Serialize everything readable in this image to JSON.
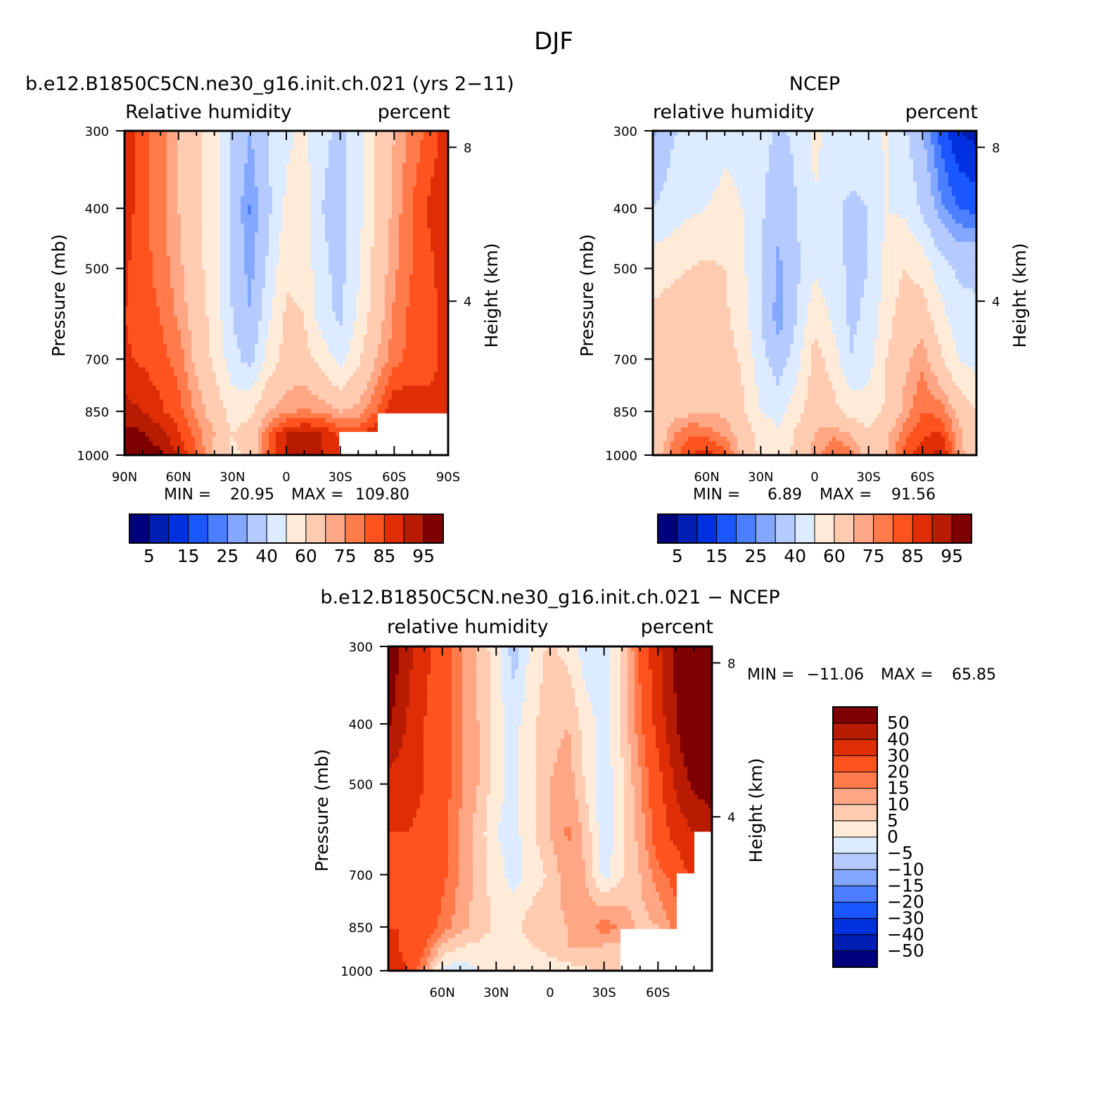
{
  "figure": {
    "title": "DJF"
  },
  "colors": {
    "abs_palette": [
      "#00007f",
      "#001fb2",
      "#0031e0",
      "#1b57ff",
      "#4b7fff",
      "#84a8ff",
      "#b5caff",
      "#dcebff",
      "#ffebd8",
      "#ffcbb1",
      "#ffa685",
      "#ff7b4b",
      "#ff531f",
      "#df2e06",
      "#b71c02",
      "#7f0000"
    ],
    "diff_palette": [
      "#00007f",
      "#001fb2",
      "#0031e0",
      "#1b57ff",
      "#4b7fff",
      "#84a8ff",
      "#b5caff",
      "#dcebff",
      "#ffebd8",
      "#ffcbb1",
      "#ffa685",
      "#ff7b4b",
      "#ff531f",
      "#df2e06",
      "#b71c02",
      "#7f0000"
    ],
    "missing": "#ffffff",
    "frame": "#000000"
  },
  "chart_data": [
    {
      "type": "heatmap",
      "id": "model",
      "title": "b.e12.B1850C5CN.ne30_g16.init.ch.021 (yrs 2−11)",
      "left_label": "Relative humidity",
      "right_label": "percent",
      "ylabel": "Pressure (mb)",
      "ylabel_right": "Height (km)",
      "x_ticklabels": [
        "90N",
        "60N",
        "30N",
        "0",
        "30S",
        "60S",
        "90S"
      ],
      "x_ticks": [
        90,
        60,
        30,
        0,
        -30,
        -60,
        -90
      ],
      "xlim": [
        90,
        -90
      ],
      "y_ticklabels": [
        "300",
        "400",
        "500",
        "700",
        "850",
        "1000"
      ],
      "y_ticks": [
        300,
        400,
        500,
        700,
        850,
        1000
      ],
      "ylim": [
        1000,
        300
      ],
      "y_scale": "log",
      "height_ticklabels": [
        "8",
        "4"
      ],
      "height_ticks": [
        8,
        4
      ],
      "min_label": "MIN =",
      "min_value": "20.95",
      "max_label": "MAX =",
      "max_value": "109.80",
      "levels": [
        5,
        10,
        15,
        20,
        25,
        30,
        40,
        50,
        60,
        70,
        75,
        80,
        85,
        90,
        95
      ],
      "colorbar_labels": [
        "5",
        "15",
        "25",
        "40",
        "60",
        "75",
        "85",
        "95"
      ],
      "lat": [
        90,
        80,
        70,
        60,
        50,
        40,
        30,
        20,
        10,
        0,
        -10,
        -20,
        -30,
        -40,
        -50,
        -60,
        -70,
        -80,
        -90
      ],
      "plev": [
        300,
        400,
        500,
        600,
        700,
        850,
        925,
        1000
      ],
      "values": [
        [
          88,
          82,
          77,
          70,
          62,
          54,
          38,
          30,
          40,
          48,
          52,
          42,
          38,
          45,
          60,
          70,
          77,
          82,
          88
        ],
        [
          88,
          82,
          77,
          70,
          62,
          54,
          36,
          24,
          38,
          52,
          55,
          40,
          36,
          46,
          62,
          72,
          80,
          86,
          90
        ],
        [
          86,
          82,
          78,
          72,
          64,
          54,
          38,
          27,
          42,
          58,
          57,
          42,
          37,
          48,
          64,
          74,
          80,
          84,
          88
        ],
        [
          85,
          83,
          80,
          74,
          66,
          56,
          40,
          30,
          48,
          62,
          60,
          44,
          38,
          52,
          66,
          76,
          82,
          84,
          86
        ],
        [
          86,
          84,
          82,
          78,
          68,
          58,
          44,
          36,
          54,
          64,
          64,
          56,
          46,
          58,
          70,
          78,
          82,
          84,
          86
        ],
        [
          92,
          90,
          86,
          82,
          74,
          66,
          56,
          58,
          70,
          74,
          76,
          74,
          70,
          72,
          80,
          90,
          88,
          86,
          86
        ],
        [
          97,
          96,
          92,
          86,
          78,
          70,
          60,
          64,
          80,
          90,
          92,
          90,
          84,
          84,
          90,
          null,
          null,
          null,
          null
        ],
        [
          99,
          98,
          96,
          90,
          80,
          68,
          58,
          62,
          82,
          90,
          92,
          90,
          86,
          null,
          null,
          null,
          null,
          null,
          null
        ]
      ]
    },
    {
      "type": "heatmap",
      "id": "obs",
      "title": "NCEP",
      "left_label": "relative humidity",
      "right_label": "percent",
      "ylabel": "Pressure (mb)",
      "ylabel_right": "Height (km)",
      "x_ticklabels": [
        "60N",
        "30N",
        "0",
        "30S",
        "60S"
      ],
      "x_ticks": [
        60,
        30,
        0,
        -30,
        -60
      ],
      "xlim": [
        90,
        -90
      ],
      "y_ticklabels": [
        "300",
        "400",
        "500",
        "700",
        "850",
        "1000"
      ],
      "y_ticks": [
        300,
        400,
        500,
        700,
        850,
        1000
      ],
      "ylim": [
        1000,
        300
      ],
      "y_scale": "log",
      "height_ticklabels": [
        "8",
        "4"
      ],
      "height_ticks": [
        8,
        4
      ],
      "min_label": "MIN =",
      "min_value": "6.89",
      "max_label": "MAX =",
      "max_value": "91.56",
      "levels": [
        5,
        10,
        15,
        20,
        25,
        30,
        40,
        50,
        60,
        70,
        75,
        80,
        85,
        90,
        95
      ],
      "colorbar_labels": [
        "5",
        "15",
        "25",
        "40",
        "60",
        "75",
        "85",
        "95"
      ],
      "lat": [
        90,
        80,
        70,
        60,
        50,
        40,
        30,
        20,
        10,
        0,
        -10,
        -20,
        -30,
        -40,
        -50,
        -60,
        -70,
        -80,
        -90
      ],
      "plev": [
        300,
        400,
        500,
        600,
        700,
        850,
        925,
        1000
      ],
      "values": [
        [
          28,
          38,
          44,
          46,
          48,
          48,
          44,
          38,
          42,
          52,
          48,
          46,
          44,
          52,
          42,
          30,
          18,
          10,
          8
        ],
        [
          40,
          44,
          48,
          50,
          52,
          50,
          42,
          32,
          40,
          50,
          42,
          38,
          40,
          50,
          48,
          38,
          26,
          20,
          18
        ],
        [
          56,
          58,
          60,
          62,
          60,
          52,
          40,
          28,
          38,
          48,
          44,
          38,
          40,
          54,
          60,
          56,
          44,
          38,
          38
        ],
        [
          62,
          64,
          66,
          66,
          62,
          54,
          40,
          26,
          40,
          58,
          48,
          38,
          42,
          56,
          66,
          66,
          54,
          44,
          42
        ],
        [
          64,
          66,
          68,
          70,
          66,
          58,
          44,
          34,
          46,
          64,
          56,
          40,
          46,
          60,
          68,
          74,
          62,
          50,
          46
        ],
        [
          62,
          66,
          68,
          70,
          68,
          62,
          50,
          46,
          56,
          66,
          64,
          56,
          54,
          62,
          72,
          80,
          78,
          68,
          60
        ],
        [
          60,
          74,
          80,
          78,
          74,
          66,
          56,
          52,
          62,
          70,
          74,
          70,
          62,
          68,
          78,
          84,
          86,
          72,
          62
        ],
        [
          60,
          76,
          84,
          88,
          82,
          68,
          58,
          52,
          64,
          72,
          80,
          78,
          66,
          70,
          82,
          88,
          92,
          74,
          62
        ]
      ]
    },
    {
      "type": "heatmap",
      "id": "difference",
      "title": "b.e12.B1850C5CN.ne30_g16.init.ch.021 − NCEP",
      "left_label": "relative humidity",
      "right_label": "percent",
      "ylabel": "Pressure (mb)",
      "ylabel_right": "Height (km)",
      "x_ticklabels": [
        "60N",
        "30N",
        "0",
        "30S",
        "60S"
      ],
      "x_ticks": [
        60,
        30,
        0,
        -30,
        -60
      ],
      "xlim": [
        90,
        -90
      ],
      "y_ticklabels": [
        "300",
        "400",
        "500",
        "700",
        "850",
        "1000"
      ],
      "y_ticks": [
        300,
        400,
        500,
        700,
        850,
        1000
      ],
      "ylim": [
        1000,
        300
      ],
      "y_scale": "log",
      "height_ticklabels": [
        "8",
        "4"
      ],
      "height_ticks": [
        8,
        4
      ],
      "min_label": "MIN =",
      "min_value": "−11.06",
      "max_label": "MAX =",
      "max_value": "65.85",
      "levels": [
        -50,
        -40,
        -30,
        -20,
        -15,
        -10,
        -5,
        0,
        5,
        10,
        15,
        20,
        30,
        40,
        50
      ],
      "colorbar_labels": [
        "50",
        "40",
        "30",
        "20",
        "15",
        "10",
        "5",
        "0",
        "−5",
        "−10",
        "−15",
        "−20",
        "−30",
        "−40",
        "−50"
      ],
      "lat": [
        90,
        80,
        70,
        60,
        50,
        40,
        30,
        20,
        10,
        0,
        -10,
        -20,
        -30,
        -40,
        -50,
        -60,
        -70,
        -80,
        -90
      ],
      "plev": [
        300,
        400,
        500,
        600,
        700,
        850,
        925,
        1000
      ],
      "values": [
        [
          60,
          44,
          33,
          24,
          16,
          9,
          2,
          -8,
          2,
          6,
          3,
          -3,
          -2,
          5,
          22,
          38,
          52,
          62,
          66
        ],
        [
          52,
          40,
          30,
          24,
          16,
          10,
          2,
          -2,
          4,
          8,
          10,
          2,
          -2,
          6,
          18,
          34,
          50,
          62,
          66
        ],
        [
          36,
          34,
          30,
          24,
          16,
          10,
          2,
          -2,
          4,
          10,
          13,
          4,
          -4,
          4,
          14,
          26,
          42,
          52,
          56
        ],
        [
          30,
          30,
          28,
          22,
          14,
          8,
          0,
          -2,
          4,
          10,
          16,
          8,
          -4,
          4,
          12,
          24,
          34,
          40,
          44
        ],
        [
          28,
          30,
          28,
          22,
          14,
          8,
          2,
          -2,
          2,
          6,
          14,
          10,
          -2,
          4,
          10,
          18,
          22,
          34,
          null
        ],
        [
          30,
          30,
          26,
          18,
          12,
          8,
          4,
          3,
          8,
          8,
          10,
          12,
          18,
          14,
          8,
          10,
          18,
          null,
          null
        ],
        [
          34,
          28,
          20,
          8,
          4,
          3,
          2,
          2,
          4,
          7,
          10,
          10,
          8,
          8,
          null,
          null,
          null,
          null,
          null
        ],
        [
          40,
          30,
          14,
          -2,
          -4,
          0,
          1,
          2,
          2,
          0,
          2,
          4,
          6,
          5,
          null,
          null,
          null,
          null,
          null
        ]
      ]
    }
  ]
}
